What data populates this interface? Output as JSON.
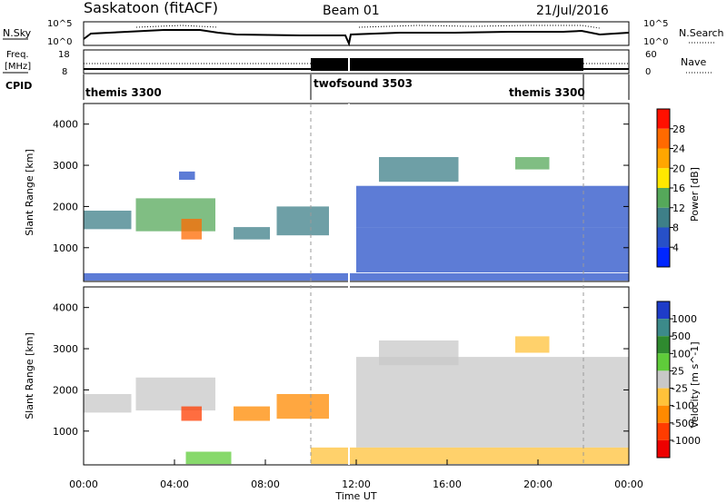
{
  "header": {
    "title": "Saskatoon (fitACF)",
    "beam": "Beam 01",
    "date": "21/Jul/2016"
  },
  "top_panels": {
    "nsky_label": "N.Sky",
    "nsky_ticks": [
      "10^5",
      "10^0"
    ],
    "nsearch_label": "N.Search",
    "nsearch_ticks": [
      "10^5",
      "10^0"
    ],
    "freq_label": "Freq.",
    "freq_unit": "[MHz]",
    "freq_ticks": [
      "18",
      "8"
    ],
    "nave_label": "Nave",
    "nave_ticks": [
      "60",
      "0"
    ],
    "cpid_label": "CPID",
    "cpid_segments": [
      {
        "name": "themis 3300",
        "start_hour": 0,
        "end_hour": 10
      },
      {
        "name": "twofsound 3503",
        "start_hour": 10,
        "end_hour": 22
      },
      {
        "name": "themis 3300",
        "start_hour": 22,
        "end_hour": 24
      }
    ]
  },
  "chart_data": [
    {
      "type": "heatmap",
      "name": "power",
      "xlabel": "",
      "ylabel": "Slant Range [km]",
      "xlim": [
        0,
        24
      ],
      "ylim": [
        180,
        4500
      ],
      "y_ticks": [
        1000,
        2000,
        3000,
        4000
      ],
      "y_tick_labels": [
        "1000",
        "2000",
        "3000",
        "4000"
      ],
      "colorbar_label": "Power [dB]",
      "colorbar_ticks": [
        "4",
        "8",
        "12",
        "16",
        "20",
        "24",
        "28"
      ],
      "colorbar_colors": [
        "#0026ff",
        "#2750c8",
        "#3e7f88",
        "#55a85a",
        "#ffe800",
        "#ffa600",
        "#ff6a00",
        "#ff1000"
      ],
      "regions": [
        {
          "t0": 0.0,
          "t1": 2.1,
          "r0": 1450,
          "r1": 1900,
          "level": 2
        },
        {
          "t0": 2.3,
          "t1": 5.8,
          "r0": 1400,
          "r1": 2200,
          "level": 3
        },
        {
          "t0": 4.3,
          "t1": 5.2,
          "r0": 1200,
          "r1": 1700,
          "level": 6
        },
        {
          "t0": 4.2,
          "t1": 4.9,
          "r0": 2650,
          "r1": 2850,
          "level": 1
        },
        {
          "t0": 6.6,
          "t1": 8.2,
          "r0": 1200,
          "r1": 1500,
          "level": 2
        },
        {
          "t0": 8.5,
          "t1": 10.8,
          "r0": 1300,
          "r1": 2000,
          "level": 2
        },
        {
          "t0": 12.0,
          "t1": 24.0,
          "r0": 400,
          "r1": 1500,
          "level": 1
        },
        {
          "t0": 12.0,
          "t1": 24.0,
          "r0": 1500,
          "r1": 2500,
          "level": 1
        },
        {
          "t0": 13.0,
          "t1": 16.5,
          "r0": 2600,
          "r1": 3200,
          "level": 2
        },
        {
          "t0": 19.0,
          "t1": 20.5,
          "r0": 2900,
          "r1": 3200,
          "level": 3
        },
        {
          "t0": 0.0,
          "t1": 24.0,
          "r0": 200,
          "r1": 380,
          "level": 1
        }
      ]
    },
    {
      "type": "heatmap",
      "name": "velocity",
      "xlabel": "Time UT",
      "ylabel": "Slant Range [km]",
      "xlim": [
        0,
        24
      ],
      "ylim": [
        180,
        4500
      ],
      "x_ticks": [
        0,
        4,
        8,
        12,
        16,
        20,
        24
      ],
      "x_tick_labels": [
        "00:00",
        "04:00",
        "08:00",
        "12:00",
        "16:00",
        "20:00",
        "00:00"
      ],
      "y_ticks": [
        1000,
        2000,
        3000,
        4000
      ],
      "y_tick_labels": [
        "1000",
        "2000",
        "3000",
        "4000"
      ],
      "colorbar_label": "Velocity [m s^-1]",
      "colorbar_ticks": [
        "1000",
        "500",
        "100",
        "25",
        "-25",
        "-100",
        "-500",
        "-1000"
      ],
      "colorbar_colors": [
        "#1e3cc8",
        "#3c8a8a",
        "#2f8a2f",
        "#5fcc3a",
        "#c8c8c8",
        "#ffc23a",
        "#ff8a00",
        "#ff3c00",
        "#ee0000"
      ],
      "regions": [
        {
          "t0": 0.0,
          "t1": 2.1,
          "r0": 1450,
          "r1": 1900,
          "level": 4
        },
        {
          "t0": 2.3,
          "t1": 5.8,
          "r0": 1500,
          "r1": 2300,
          "level": 4
        },
        {
          "t0": 4.3,
          "t1": 5.2,
          "r0": 1250,
          "r1": 1600,
          "level": 7
        },
        {
          "t0": 6.6,
          "t1": 8.2,
          "r0": 1250,
          "r1": 1600,
          "level": 6
        },
        {
          "t0": 8.5,
          "t1": 10.8,
          "r0": 1300,
          "r1": 1900,
          "level": 6
        },
        {
          "t0": 12.0,
          "t1": 24.0,
          "r0": 600,
          "r1": 2800,
          "level": 4
        },
        {
          "t0": 13.0,
          "t1": 16.5,
          "r0": 2600,
          "r1": 3200,
          "level": 4
        },
        {
          "t0": 19.0,
          "t1": 20.5,
          "r0": 2900,
          "r1": 3300,
          "level": 5
        },
        {
          "t0": 10.0,
          "t1": 24.0,
          "r0": 200,
          "r1": 600,
          "level": 5
        },
        {
          "t0": 4.5,
          "t1": 6.5,
          "r0": 200,
          "r1": 500,
          "level": 3
        }
      ]
    }
  ]
}
